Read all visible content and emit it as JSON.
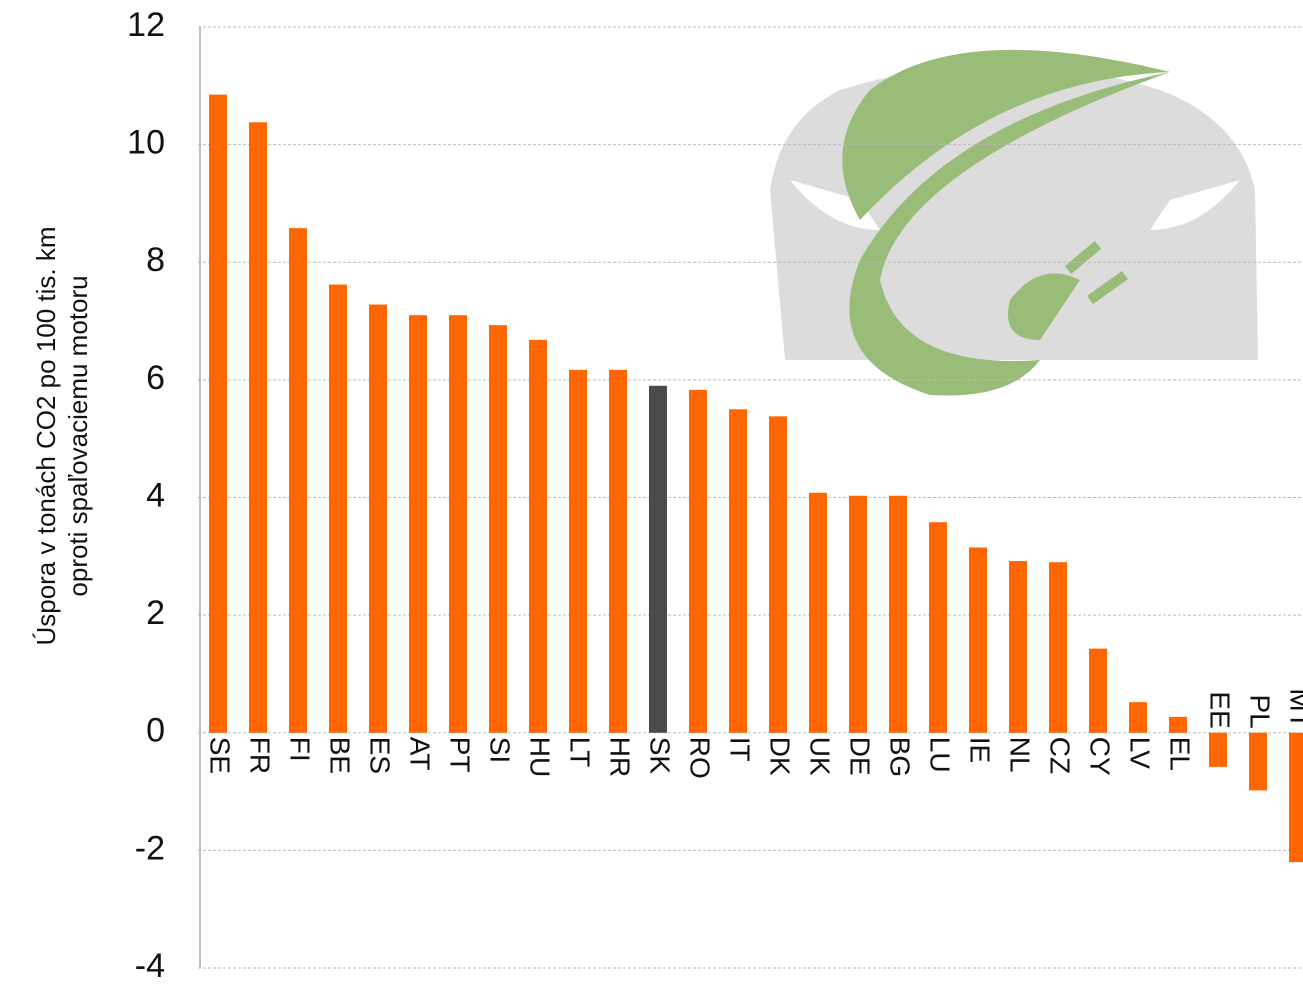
{
  "chart_data": {
    "type": "bar",
    "ylabel": [
      "Úspora v tonách CO2 po 100 tis. km",
      "oproti spaľovaciemu motoru"
    ],
    "categories": [
      "SE",
      "FR",
      "FI",
      "BE",
      "ES",
      "AT",
      "PT",
      "SI",
      "HU",
      "LT",
      "HR",
      "SK",
      "RO",
      "IT",
      "DK",
      "UK",
      "DE",
      "BG",
      "LU",
      "IE",
      "NL",
      "CZ",
      "CY",
      "LV",
      "EL",
      "EE",
      "PL",
      "MT"
    ],
    "values": [
      10.85,
      10.38,
      8.58,
      7.62,
      7.28,
      7.1,
      7.1,
      6.93,
      6.68,
      6.17,
      6.17,
      5.9,
      5.83,
      5.5,
      5.38,
      4.08,
      4.03,
      4.03,
      3.58,
      3.15,
      2.92,
      2.9,
      1.43,
      0.52,
      0.27,
      -0.58,
      -0.98,
      -2.2
    ],
    "colors": [
      "#ff6600",
      "#ff6600",
      "#ff6600",
      "#ff6600",
      "#ff6600",
      "#ff6600",
      "#ff6600",
      "#ff6600",
      "#ff6600",
      "#ff6600",
      "#ff6600",
      "#4a4a4a",
      "#ff6600",
      "#ff6600",
      "#ff6600",
      "#ff6600",
      "#ff6600",
      "#ff6600",
      "#ff6600",
      "#ff6600",
      "#ff6600",
      "#ff6600",
      "#ff6600",
      "#ff6600",
      "#ff6600",
      "#ff6600",
      "#ff6600",
      "#ff6600"
    ],
    "ylim": [
      -4,
      12
    ],
    "yticks": [
      -4,
      -2,
      0,
      2,
      4,
      6,
      8,
      10,
      12
    ],
    "grid": true
  }
}
